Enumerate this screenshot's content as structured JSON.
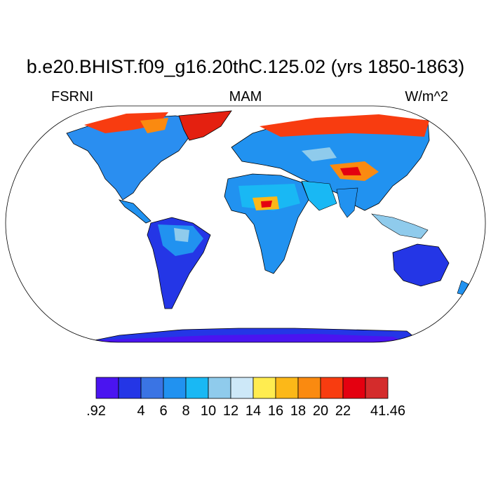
{
  "title": "b.e20.BHIST.f09_g16.20thC.125.02 (yrs 1850-1863)",
  "subtitle_left": "FSRNI",
  "subtitle_center": "MAM",
  "subtitle_right": "W/m^2",
  "map": {
    "projection": "Robinson",
    "coastlines": true,
    "ocean_color": "#ffffff"
  },
  "colorbar": {
    "orientation": "horizontal",
    "colors": [
      "#4a14f0",
      "#2436e6",
      "#3a74e4",
      "#2192f0",
      "#19b8f4",
      "#8fcbec",
      "#cde8f8",
      "#ffec50",
      "#fcb818",
      "#fa8a10",
      "#f83c10",
      "#e40010",
      "#d42c2c"
    ],
    "labels": [
      ".92",
      "",
      "4",
      "6",
      "8",
      "10",
      "12",
      "14",
      "16",
      "18",
      "20",
      "22",
      "",
      "41.46"
    ]
  }
}
